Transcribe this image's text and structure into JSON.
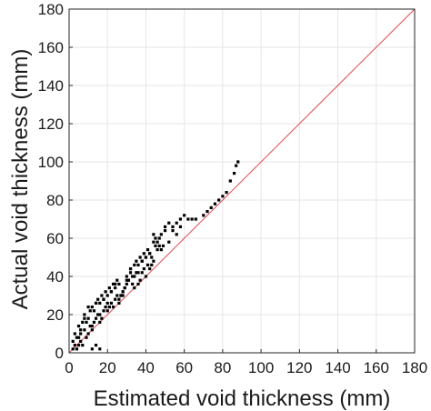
{
  "chart_data": {
    "type": "scatter",
    "xlabel": "Estimated void thickness (mm)",
    "ylabel": "Actual void thickness (mm)",
    "xlim": [
      0,
      180
    ],
    "ylim": [
      0,
      180
    ],
    "xticks": [
      "0",
      "20",
      "40",
      "60",
      "80",
      "100",
      "120",
      "140",
      "160",
      "180"
    ],
    "yticks": [
      "0",
      "20",
      "40",
      "60",
      "80",
      "100",
      "120",
      "140",
      "160",
      "180"
    ],
    "grid": true,
    "colors": {
      "points": "#000000",
      "reference_line": "#e8474c",
      "grid": "#e6e6e6",
      "axes": "#262626"
    },
    "reference_line": {
      "x": [
        0,
        180
      ],
      "y": [
        0,
        180
      ]
    },
    "series": [
      {
        "x": [
          2,
          3,
          2,
          4,
          5,
          4,
          6,
          3,
          5,
          7,
          6,
          8,
          5,
          9,
          7,
          10,
          8,
          6,
          11,
          9,
          12,
          10,
          8,
          13,
          11,
          14,
          12,
          10,
          15,
          13,
          16,
          14,
          12,
          17,
          15,
          18,
          16,
          14,
          19,
          17,
          20,
          18,
          16,
          21,
          19,
          22,
          20,
          18,
          23,
          21,
          24,
          22,
          20,
          25,
          23,
          26,
          24,
          22,
          27,
          25,
          28,
          26,
          24,
          29,
          27,
          30,
          28,
          26,
          31,
          29,
          32,
          30,
          28,
          33,
          31,
          34,
          32,
          30,
          35,
          33,
          36,
          34,
          32,
          37,
          35,
          38,
          36,
          34,
          39,
          37,
          40,
          38,
          36,
          41,
          39,
          42,
          40,
          38,
          43,
          41,
          44,
          42,
          40,
          45,
          43,
          46,
          44,
          42,
          47,
          45,
          48,
          46,
          44,
          49,
          47,
          50,
          48,
          52,
          50,
          54,
          52,
          56,
          54,
          58,
          56,
          60,
          58,
          62,
          64,
          66,
          70,
          72,
          74,
          76,
          78,
          80,
          82,
          84,
          86,
          87,
          88,
          12,
          14,
          16
        ],
        "y": [
          2,
          4,
          6,
          2,
          4,
          8,
          6,
          10,
          8,
          4,
          10,
          12,
          14,
          8,
          16,
          10,
          18,
          12,
          14,
          16,
          12,
          18,
          20,
          16,
          22,
          18,
          14,
          24,
          20,
          22,
          16,
          26,
          24,
          18,
          28,
          22,
          20,
          26,
          24,
          30,
          22,
          28,
          26,
          24,
          32,
          26,
          30,
          28,
          24,
          34,
          28,
          32,
          26,
          30,
          36,
          28,
          34,
          32,
          30,
          38,
          32,
          26,
          36,
          34,
          30,
          40,
          32,
          36,
          38,
          34,
          42,
          36,
          30,
          40,
          38,
          34,
          44,
          38,
          42,
          36,
          46,
          40,
          44,
          38,
          48,
          42,
          36,
          46,
          44,
          50,
          40,
          48,
          42,
          46,
          52,
          44,
          50,
          48,
          46,
          54,
          48,
          52,
          50,
          56,
          50,
          54,
          58,
          52,
          56,
          60,
          54,
          58,
          62,
          56,
          60,
          64,
          62,
          58,
          66,
          64,
          68,
          62,
          66,
          70,
          68,
          72,
          66,
          70,
          70,
          70,
          72,
          74,
          76,
          78,
          80,
          82,
          84,
          90,
          94,
          98,
          100,
          2,
          4,
          2
        ]
      }
    ]
  }
}
